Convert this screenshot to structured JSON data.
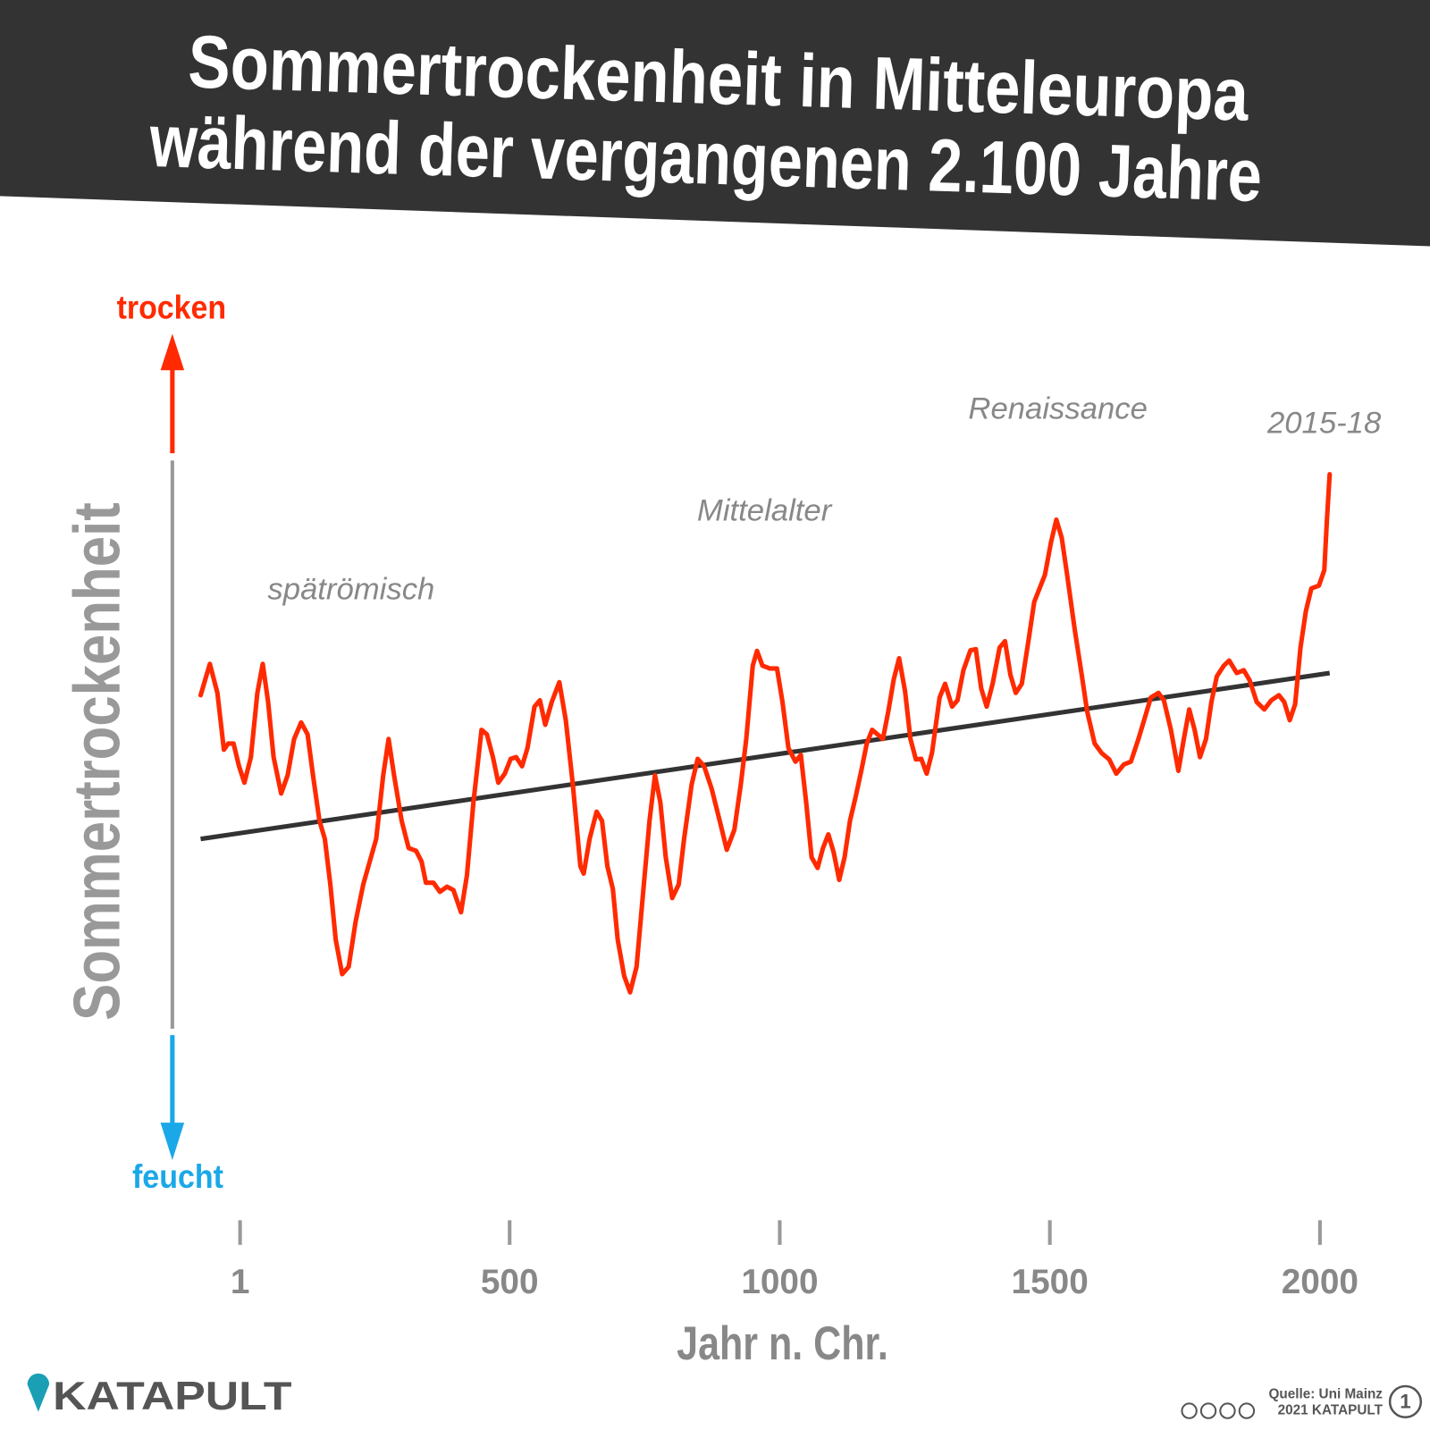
{
  "chart_data": {
    "type": "line",
    "title": [
      "Sommertrockenheit in Mitteleuropa",
      "während der vergangenen 2.100 Jahre"
    ],
    "y_label": "Sommertrockenheit",
    "y_top_label": "trocken",
    "y_bottom_label": "feucht",
    "x_label": "Jahr n. Chr.",
    "annotations": [
      "spätrömisch",
      "Mittelalter",
      "Renaissance",
      "2015-18"
    ],
    "brand": "KATAPULT",
    "source": "Quelle: Uni Mainz",
    "credit": "2021 KATAPULT",
    "badge": "1",
    "color": "#ff2a00",
    "x": [
      -72,
      -55,
      -41,
      -29,
      -21,
      -11,
      -1,
      9,
      21,
      33,
      43,
      53,
      63,
      77,
      89,
      101,
      114,
      126,
      136,
      148,
      158,
      168,
      178,
      190,
      202,
      215,
      229,
      241,
      253,
      266,
      276,
      286,
      300,
      313,
      327,
      337,
      345,
      359,
      371,
      384,
      396,
      410,
      421,
      433,
      448,
      458,
      469,
      479,
      491,
      502,
      512,
      523,
      533,
      546,
      556,
      566,
      578,
      592,
      604,
      617,
      631,
      637,
      648,
      661,
      671,
      681,
      691,
      700,
      712,
      723,
      735,
      747,
      759,
      769,
      779,
      789,
      801,
      813,
      823,
      837,
      848,
      860,
      874,
      891,
      902,
      916,
      928,
      938,
      950,
      958,
      968,
      982,
      995,
      1005,
      1016,
      1029,
      1039,
      1049,
      1059,
      1070,
      1080,
      1090,
      1100,
      1110,
      1120,
      1130,
      1140,
      1151,
      1161,
      1171,
      1181,
      1191,
      1201,
      1211,
      1221,
      1232,
      1242,
      1252,
      1262,
      1272,
      1282,
      1296,
      1306,
      1319,
      1329,
      1340,
      1353,
      1363,
      1373,
      1383,
      1394,
      1407,
      1417,
      1427,
      1437,
      1448,
      1461,
      1471,
      1481,
      1491,
      1502,
      1512,
      1522,
      1532,
      1546,
      1559,
      1569,
      1583,
      1596,
      1610,
      1623,
      1637,
      1650,
      1664,
      1677,
      1687,
      1701,
      1711,
      1724,
      1738,
      1748,
      1758,
      1768,
      1778,
      1789,
      1799,
      1809,
      1822,
      1832,
      1846,
      1859,
      1870,
      1883,
      1897,
      1910,
      1924,
      1934,
      1944,
      1954,
      1964,
      1974,
      1984,
      1998,
      2008,
      2013,
      2018
    ],
    "values": [
      58.7,
      64.2,
      59.1,
      49.1,
      50.2,
      50.2,
      46.2,
      43.3,
      47.8,
      59.1,
      64.2,
      57.5,
      47.8,
      41.4,
      44.6,
      51.0,
      53.9,
      51.8,
      44.6,
      36.6,
      33.4,
      25.4,
      15.7,
      9.6,
      10.9,
      18.9,
      25.4,
      29.4,
      33.4,
      44.6,
      51.0,
      44.6,
      36.6,
      31.8,
      31.3,
      29.4,
      25.7,
      25.7,
      24.1,
      25.0,
      24.4,
      20.5,
      27.0,
      39.8,
      52.6,
      51.8,
      47.8,
      43.3,
      44.9,
      47.5,
      47.8,
      46.2,
      49.4,
      56.7,
      57.8,
      53.5,
      57.5,
      61.0,
      54.3,
      43.0,
      28.6,
      27.3,
      33.4,
      38.2,
      36.6,
      28.6,
      24.6,
      15.7,
      9.3,
      6.4,
      10.9,
      23.8,
      36.6,
      44.6,
      39.8,
      30.2,
      23.0,
      25.4,
      33.4,
      43.0,
      47.5,
      46.2,
      42.2,
      35.8,
      31.5,
      35.0,
      43.0,
      51.0,
      63.9,
      66.5,
      63.9,
      63.4,
      63.4,
      57.5,
      49.4,
      47.0,
      48.2,
      39.8,
      30.2,
      28.3,
      31.8,
      34.2,
      31.0,
      26.2,
      30.2,
      36.6,
      40.6,
      45.4,
      50.2,
      52.6,
      51.8,
      51.0,
      55.9,
      61.5,
      65.2,
      59.4,
      51.0,
      47.4,
      47.5,
      44.9,
      48.6,
      58.3,
      60.7,
      56.7,
      57.8,
      63.1,
      66.6,
      66.8,
      59.9,
      56.7,
      60.7,
      67.1,
      68.2,
      62.3,
      59.1,
      60.7,
      68.7,
      75.1,
      77.5,
      79.9,
      85.6,
      89.6,
      86.4,
      79.9,
      70.3,
      62.3,
      55.9,
      50.2,
      48.5,
      47.4,
      44.9,
      46.5,
      47.0,
      51.0,
      55.1,
      58.3,
      59.1,
      57.8,
      52.6,
      45.4,
      51.0,
      56.2,
      52.6,
      47.8,
      51.0,
      57.5,
      62.0,
      63.9,
      64.8,
      62.6,
      63.1,
      61.3,
      57.5,
      56.2,
      57.8,
      58.7,
      57.5,
      54.3,
      57.1,
      67.1,
      73.5,
      77.5,
      78.0,
      80.7,
      89.6,
      97.6
    ],
    "trend": {
      "x": [
        -72,
        2018
      ],
      "values": [
        33.4,
        62.6
      ],
      "color": "#333333"
    },
    "xlim": [
      -72,
      2018
    ],
    "ylim": [
      0,
      100
    ],
    "xticks": [
      1,
      500,
      1000,
      1500,
      2000
    ],
    "grid": false
  }
}
